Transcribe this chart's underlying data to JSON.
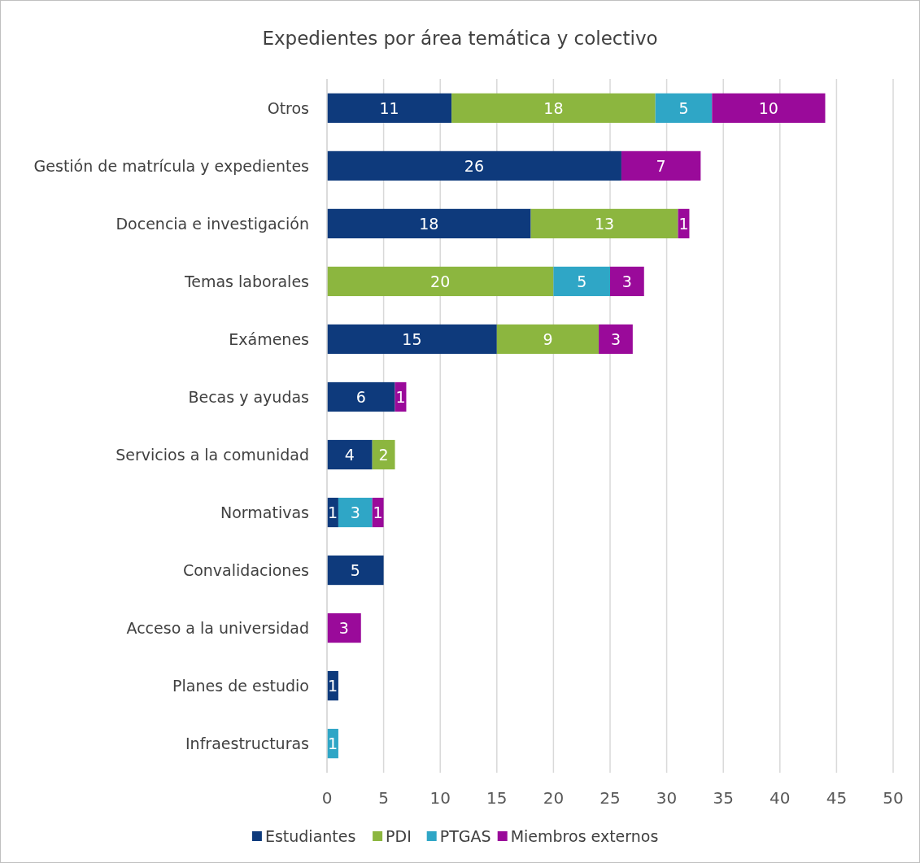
{
  "chart_data": {
    "type": "bar",
    "orientation": "horizontal",
    "stacked": true,
    "title": "Expedientes por área temática y colectivo",
    "categories": [
      "Otros",
      "Gestión de matrícula y expedientes",
      "Docencia e investigación",
      "Temas laborales",
      "Exámenes",
      "Becas y ayudas",
      "Servicios a la comunidad",
      "Normativas",
      "Convalidaciones",
      "Acceso a la universidad",
      "Planes de estudio",
      "Infraestructuras"
    ],
    "series": [
      {
        "name": "Estudiantes",
        "color": "#0e3a7c",
        "values": [
          11,
          26,
          18,
          null,
          15,
          6,
          4,
          1,
          5,
          null,
          1,
          null
        ]
      },
      {
        "name": "PDI",
        "color": "#8cb63f",
        "values": [
          18,
          null,
          13,
          20,
          9,
          null,
          2,
          null,
          null,
          null,
          null,
          null
        ]
      },
      {
        "name": "PTGAS",
        "color": "#2fa6c6",
        "values": [
          5,
          null,
          null,
          5,
          null,
          null,
          null,
          3,
          null,
          null,
          null,
          1
        ]
      },
      {
        "name": "Miembros externos",
        "color": "#9a0a9a",
        "values": [
          10,
          7,
          1,
          3,
          3,
          1,
          null,
          1,
          null,
          3,
          null,
          null
        ]
      }
    ],
    "xlim": [
      0,
      50
    ],
    "xticks": [
      0,
      5,
      10,
      15,
      20,
      25,
      30,
      35,
      40,
      45,
      50
    ],
    "grid": "x",
    "legend": "bottom",
    "data_labels": true
  }
}
